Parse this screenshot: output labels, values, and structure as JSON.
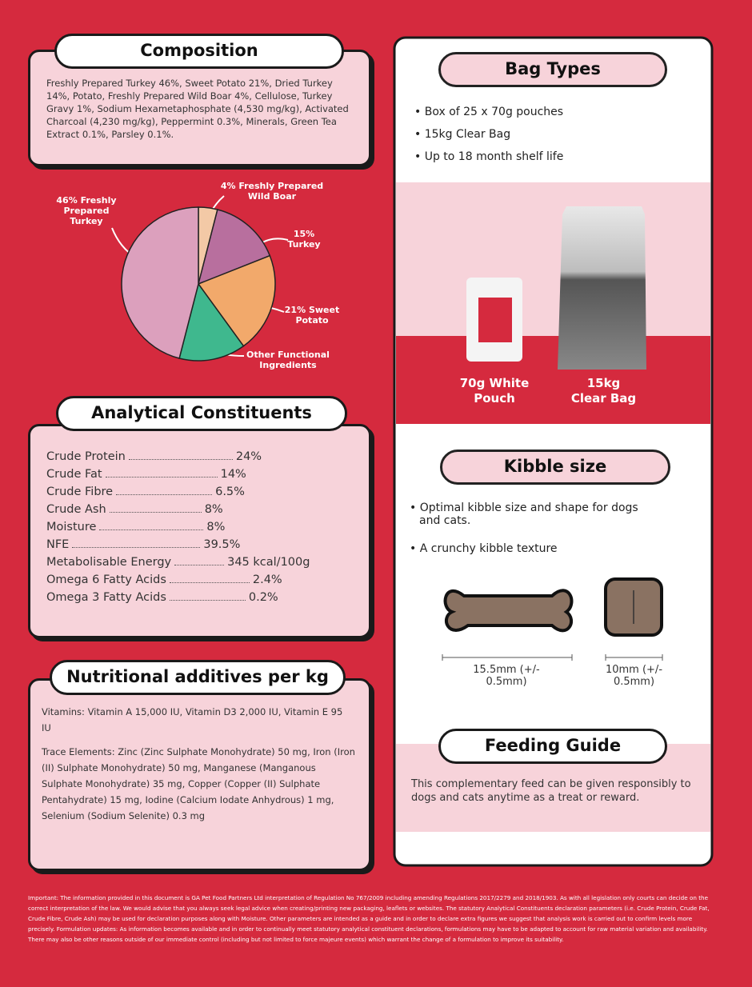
{
  "composition": {
    "title": "Composition",
    "text": "Freshly Prepared Turkey 46%, Sweet Potato 21%, Dried Turkey 14%, Potato, Freshly Prepared Wild Boar 4%, Cellulose, Turkey Gravy 1%, Sodium Hexametaphosphate (4,530 mg/kg), Activated Charcoal (4,230 mg/kg), Peppermint 0.3%, Minerals, Green Tea Extract 0.1%, Parsley 0.1%."
  },
  "chart_data": {
    "type": "pie",
    "categories": [
      "4% Freshly Prepared Wild Boar",
      "15% Turkey",
      "21% Sweet Potato",
      "Other Functional Ingredients",
      "46% Freshly Prepared Turkey"
    ],
    "values": [
      4,
      15,
      21,
      14,
      46
    ],
    "colors": [
      "#f3c9a6",
      "#b86f9e",
      "#f2a96b",
      "#3fb88e",
      "#dca0bd"
    ]
  },
  "analytical": {
    "title": "Analytical Constituents",
    "rows": [
      [
        "Crude Protein",
        "24%"
      ],
      [
        "Crude Fat",
        "14%"
      ],
      [
        "Crude Fibre",
        "6.5%"
      ],
      [
        "Crude Ash",
        "8%"
      ],
      [
        "Moisture",
        "8%"
      ],
      [
        "NFE",
        "39.5%"
      ],
      [
        "Metabolisable Energy",
        "345 kcal/100g"
      ],
      [
        "Omega 6 Fatty Acids",
        "2.4%"
      ],
      [
        "Omega 3 Fatty Acids",
        "0.2%"
      ]
    ]
  },
  "additives": {
    "title": "Nutritional additives per kg",
    "vitamins": "Vitamins: Vitamin A 15,000 IU, Vitamin D3 2,000 IU, Vitamin E 95 IU",
    "trace": "Trace Elements: Zinc (Zinc Sulphate Monohydrate) 50 mg, Iron (Iron (II) Sulphate Monohydrate) 50 mg, Manganese (Manganous Sulphate Monohydrate) 35 mg, Copper (Copper (II) Sulphate Pentahydrate) 15 mg, Iodine (Calcium Iodate Anhydrous) 1 mg, Selenium (Sodium Selenite) 0.3 mg"
  },
  "bag_types": {
    "title": "Bag Types",
    "items": [
      "Box of 25 x 70g pouches",
      "15kg Clear Bag",
      "Up to 18 month shelf life"
    ],
    "pouch": "70g White Pouch",
    "bag": "15kg Clear Bag"
  },
  "kibble": {
    "title": "Kibble size",
    "items": [
      "Optimal kibble size and shape for dogs and cats.",
      "A crunchy kibble texture"
    ],
    "bone_size": "15.5mm (+/- 0.5mm)",
    "square_size": "10mm (+/- 0.5mm)"
  },
  "feeding": {
    "title": "Feeding Guide",
    "text": "This complementary feed can be given responsibly to dogs and cats anytime as a treat or reward."
  },
  "footer": "Important: The information provided in this document is GA Pet Food Partners Ltd interpretation of Regulation No 767/2009 including amending Regulations 2017/2279 and 2018/1903. As with all legislation only courts can decide on the correct interpretation of the law. We would advise that you always seek legal advice when creating/printing new packaging, leaflets or websites. The statutory Analytical Constituents declaration parameters (i.e. Crude Protein, Crude Fat, Crude Fibre, Crude Ash) may be used for declaration purposes along with Moisture. Other parameters are intended as a guide and in order to declare extra figures we suggest that analysis work is carried out to confirm levels more precisely. Formulation updates: As information becomes available and in order to continually meet statutory analytical constituent declarations, formulations may have to be adapted to account for raw material variation and availability. There may also be other reasons outside of our immediate control (including but not limited to force majeure events) which warrant the change of a formulation to improve its suitability."
}
